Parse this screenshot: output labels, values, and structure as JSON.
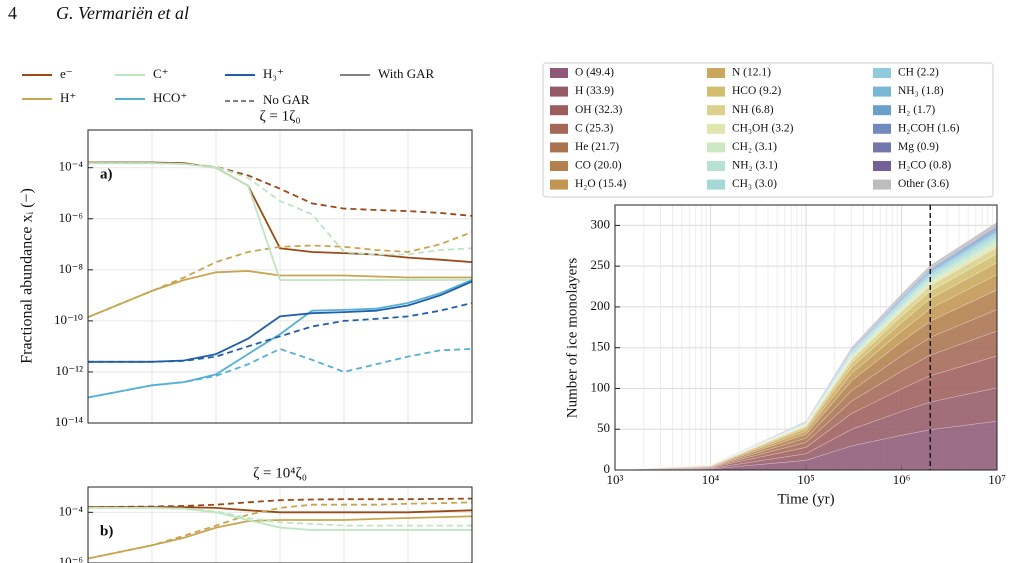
{
  "header": {
    "page": "4",
    "authors": "G. Vermariën et al"
  },
  "chart_data": [
    {
      "type": "line",
      "xscale": "log",
      "yscale": "log",
      "ylabel": "Fractional abundance xᵢ (−)",
      "xlim": [
        10,
        10000000
      ],
      "x": [
        10,
        100,
        316,
        1000,
        3162,
        10000,
        31623,
        100000,
        316228,
        1000000,
        3162278,
        10000000
      ],
      "legend": {
        "species": [
          {
            "name": "e⁻",
            "color": "#9a4a17"
          },
          {
            "name": "H⁺",
            "color": "#c8a550"
          },
          {
            "name": "C⁺",
            "color": "#bde5bf"
          },
          {
            "name": "HCO⁺",
            "color": "#55b0d6"
          },
          {
            "name": "H₃⁺",
            "color": "#2060a8"
          }
        ],
        "styles": [
          {
            "name": "With GAR",
            "dash": false,
            "color": "#808080"
          },
          {
            "name": "No GAR",
            "dash": true,
            "color": "#808080"
          }
        ]
      },
      "panels": [
        {
          "title": "ζ = 1ζ₀",
          "label": "a)",
          "ylim": [
            1e-14,
            0.003
          ],
          "yticks": [
            {
              "value": 1e-14,
              "label": "10⁻¹⁴"
            },
            {
              "value": 1e-12,
              "label": "10⁻¹²"
            },
            {
              "value": 1e-10,
              "label": "10⁻¹⁰"
            },
            {
              "value": 1e-08,
              "label": "10⁻⁸"
            },
            {
              "value": 1e-06,
              "label": "10⁻⁶"
            },
            {
              "value": 0.0001,
              "label": "10⁻⁴"
            }
          ],
          "curves": [
            {
              "with_gar": [
                0.00016,
                0.00016,
                0.00015,
                0.0001,
                2e-05,
                7e-08,
                5e-08,
                4.5e-08,
                4e-08,
                3e-08,
                2.5e-08,
                2e-08
              ],
              "no_gar": [
                0.00016,
                0.00016,
                0.00014,
                0.00011,
                5e-05,
                1.5e-05,
                4e-06,
                2.5e-06,
                2.2e-06,
                2e-06,
                1.7e-06,
                1.3e-06
              ]
            },
            {
              "with_gar": [
                1.4e-10,
                1.5e-09,
                4e-09,
                8e-09,
                9e-09,
                6e-09,
                6e-09,
                6e-09,
                5.5e-09,
                5e-09,
                5e-09,
                5e-09
              ],
              "no_gar": [
                1.4e-10,
                1.5e-09,
                5e-09,
                2e-08,
                5e-08,
                8e-08,
                9e-08,
                8e-08,
                6e-08,
                5e-08,
                1e-07,
                3e-07
              ]
            },
            {
              "with_gar": [
                0.00015,
                0.00015,
                0.00014,
                0.0001,
                2e-05,
                4e-09,
                4e-09,
                4e-09,
                4e-09,
                4e-09,
                4e-09,
                4e-09
              ],
              "no_gar": [
                0.00015,
                0.00015,
                0.00014,
                0.00011,
                4e-05,
                5e-06,
                1.5e-06,
                5e-08,
                4e-08,
                4e-08,
                6e-08,
                7e-08
              ]
            },
            {
              "with_gar": [
                1e-13,
                3e-13,
                4e-13,
                8e-13,
                5e-12,
                3e-11,
                2.5e-10,
                2.7e-10,
                3e-10,
                5e-10,
                1.2e-09,
                4e-09
              ],
              "no_gar": [
                1e-13,
                3e-13,
                4e-13,
                7e-13,
                2e-12,
                8e-12,
                3e-12,
                1e-12,
                2e-12,
                4e-12,
                7e-12,
                8e-12
              ]
            },
            {
              "with_gar": [
                2.5e-12,
                2.5e-12,
                2.8e-12,
                5e-12,
                2e-11,
                1.5e-10,
                2e-10,
                2.2e-10,
                2.5e-10,
                4e-10,
                1e-09,
                3.5e-09
              ],
              "no_gar": [
                2.5e-12,
                2.5e-12,
                2.7e-12,
                4e-12,
                1e-11,
                2.5e-11,
                6e-11,
                1e-10,
                1.2e-10,
                1.5e-10,
                2.5e-10,
                5e-10
              ]
            }
          ]
        },
        {
          "title": "ζ = 10⁴ζ₀",
          "label": "b)",
          "ylim": [
            1e-06,
            0.001
          ],
          "yticks": [
            {
              "value": 1e-06,
              "label": "10⁻⁶"
            },
            {
              "value": 0.0001,
              "label": "10⁻⁴"
            }
          ],
          "curves": [
            {
              "with_gar": [
                0.00016,
                0.00016,
                0.00016,
                0.00015,
                0.00012,
                0.0001,
                0.0001,
                0.0001,
                0.0001,
                0.0001,
                0.00011,
                0.00012
              ],
              "no_gar": [
                0.00016,
                0.00017,
                0.00018,
                0.0002,
                0.00025,
                0.0003,
                0.00032,
                0.00033,
                0.00033,
                0.00033,
                0.00034,
                0.00035
              ]
            },
            {
              "with_gar": [
                1.5e-06,
                5e-06,
                1e-05,
                2.5e-05,
                4.5e-05,
                5e-05,
                5e-05,
                5e-05,
                5.5e-05,
                6e-05,
                6.5e-05,
                7e-05
              ],
              "no_gar": [
                1.5e-06,
                5e-06,
                1.2e-05,
                3e-05,
                8e-05,
                0.00015,
                0.0002,
                0.0002,
                0.0002,
                0.00022,
                0.00023,
                0.00025
              ]
            },
            {
              "with_gar": [
                0.00015,
                0.00015,
                0.00014,
                0.0001,
                5e-05,
                2.5e-05,
                2e-05,
                2e-05,
                2e-05,
                2e-05,
                2e-05,
                2e-05
              ],
              "no_gar": [
                0.00015,
                0.00015,
                0.00014,
                0.00011,
                6e-05,
                4e-05,
                3.5e-05,
                3e-05,
                3e-05,
                3e-05,
                3e-05,
                3e-05
              ]
            }
          ]
        }
      ]
    },
    {
      "type": "stacked_area",
      "xscale": "log",
      "xlabel": "Time (yr)",
      "ylabel": "Number of ice monolayers",
      "xlim": [
        1000,
        10000000
      ],
      "xticks": [
        {
          "value": 1000,
          "label": "10³"
        },
        {
          "value": 10000,
          "label": "10⁴"
        },
        {
          "value": 100000,
          "label": "10⁵"
        },
        {
          "value": 1000000,
          "label": "10⁶"
        },
        {
          "value": 10000000,
          "label": "10⁷"
        }
      ],
      "ylim": [
        0,
        325
      ],
      "yticks": [
        0,
        50,
        100,
        150,
        200,
        250,
        300
      ],
      "grid": true,
      "vline": 2000000,
      "x": [
        1000,
        10000,
        100000,
        300000,
        1000000,
        2000000,
        10000000
      ],
      "series": [
        {
          "name": "O (49.4)",
          "color": "#8e5a78",
          "values": [
            0.1,
            1.2,
            11.9,
            29.6,
            42.5,
            49.4,
            59.8
          ]
        },
        {
          "name": "H (33.9)",
          "color": "#955a68",
          "values": [
            0.1,
            0.8,
            8.1,
            20.3,
            29.2,
            33.9,
            41.0
          ]
        },
        {
          "name": "OH (32.3)",
          "color": "#9d5d5c",
          "values": [
            0.1,
            0.8,
            7.8,
            19.4,
            27.8,
            32.3,
            39.1
          ]
        },
        {
          "name": "C (25.3)",
          "color": "#a56856",
          "values": [
            0.1,
            0.6,
            6.1,
            15.2,
            21.8,
            25.3,
            30.6
          ]
        },
        {
          "name": "He (21.7)",
          "color": "#aa7350",
          "values": [
            0,
            0.5,
            5.2,
            13.0,
            18.7,
            21.7,
            26.3
          ]
        },
        {
          "name": "CO (20.0)",
          "color": "#b3804c",
          "values": [
            0,
            0.5,
            4.8,
            12.0,
            17.2,
            20.0,
            24.2
          ]
        },
        {
          "name": "H₂O (15.4)",
          "color": "#c19552",
          "values": [
            0,
            0.4,
            3.7,
            9.2,
            13.2,
            15.4,
            18.6
          ]
        },
        {
          "name": "N (12.1)",
          "color": "#caa75c",
          "values": [
            0,
            0.3,
            2.9,
            7.3,
            10.4,
            12.1,
            14.6
          ]
        },
        {
          "name": "HCO (9.2)",
          "color": "#d2be6c",
          "values": [
            0,
            0.2,
            2.2,
            5.5,
            7.9,
            9.2,
            11.1
          ]
        },
        {
          "name": "NH (6.8)",
          "color": "#dbd18c",
          "values": [
            0,
            0.2,
            1.6,
            4.1,
            5.8,
            6.8,
            8.2
          ]
        },
        {
          "name": "CH₃OH (3.2)",
          "color": "#e0e4af",
          "values": [
            0,
            0.1,
            0.8,
            1.9,
            2.8,
            3.2,
            3.9
          ]
        },
        {
          "name": "CH₂ (3.1)",
          "color": "#cce8c2",
          "values": [
            0,
            0.1,
            0.7,
            1.9,
            2.7,
            3.1,
            3.8
          ]
        },
        {
          "name": "NH₂ (3.1)",
          "color": "#b6e2d2",
          "values": [
            0,
            0.1,
            0.7,
            1.9,
            2.7,
            3.1,
            3.8
          ]
        },
        {
          "name": "CH₃ (3.0)",
          "color": "#a4d9d8",
          "values": [
            0,
            0.1,
            0.7,
            1.8,
            2.6,
            3.0,
            3.6
          ]
        },
        {
          "name": "CH (2.2)",
          "color": "#8fcbdb",
          "values": [
            0,
            0.1,
            0.5,
            1.3,
            1.9,
            2.2,
            2.7
          ]
        },
        {
          "name": "NH₃ (1.8)",
          "color": "#79b7d4",
          "values": [
            0,
            0,
            0.4,
            1.1,
            1.5,
            1.8,
            2.2
          ]
        },
        {
          "name": "H₂ (1.7)",
          "color": "#69a0cc",
          "values": [
            0,
            0,
            0.4,
            1.0,
            1.5,
            1.7,
            2.1
          ]
        },
        {
          "name": "H₂COH (1.6)",
          "color": "#7089be",
          "values": [
            0,
            0,
            0.4,
            1.0,
            1.4,
            1.6,
            1.9
          ]
        },
        {
          "name": "Mg (0.9)",
          "color": "#7378ac",
          "values": [
            0,
            0,
            0.2,
            0.5,
            0.8,
            0.9,
            1.1
          ]
        },
        {
          "name": "H₂CO (0.8)",
          "color": "#745f96",
          "values": [
            0,
            0,
            0.2,
            0.5,
            0.7,
            0.8,
            1.0
          ]
        },
        {
          "name": "Other (3.6)",
          "color": "#bdbdbd",
          "values": [
            0,
            0.1,
            0.9,
            2.2,
            3.1,
            3.6,
            4.4
          ]
        }
      ]
    }
  ]
}
